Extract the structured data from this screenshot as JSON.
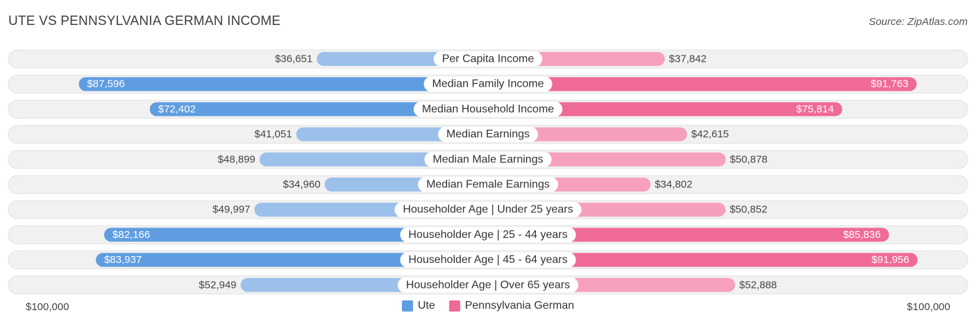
{
  "title": "UTE VS PENNSYLVANIA GERMAN INCOME",
  "source": "Source: ZipAtlas.com",
  "colors": {
    "left_light": "#9bc0e9",
    "left_dark": "#5f9de0",
    "right_light": "#f6a0bd",
    "right_dark": "#f06a97",
    "track": "#f1f1f1"
  },
  "axis": {
    "left_label": "$100,000",
    "right_label": "$100,000"
  },
  "legend": {
    "left": "Ute",
    "right": "Pennsylvania German"
  },
  "chart_data": {
    "type": "bar",
    "orientation": "horizontal-diverging",
    "max": 100000,
    "categories": [
      "Per Capita Income",
      "Median Family Income",
      "Median Household Income",
      "Median Earnings",
      "Median Male Earnings",
      "Median Female Earnings",
      "Householder Age | Under 25 years",
      "Householder Age | 25 - 44 years",
      "Householder Age | 45 - 64 years",
      "Householder Age | Over 65 years"
    ],
    "series": [
      {
        "name": "Ute",
        "values": [
          36651,
          87596,
          72402,
          41051,
          48899,
          34960,
          49997,
          82166,
          83937,
          52949
        ],
        "labels": [
          "$36,651",
          "$87,596",
          "$72,402",
          "$41,051",
          "$48,899",
          "$34,960",
          "$49,997",
          "$82,166",
          "$83,937",
          "$52,949"
        ]
      },
      {
        "name": "Pennsylvania German",
        "values": [
          37842,
          91763,
          75814,
          42615,
          50878,
          34802,
          50852,
          85836,
          91956,
          52888
        ],
        "labels": [
          "$37,842",
          "$91,763",
          "$75,814",
          "$42,615",
          "$50,878",
          "$34,802",
          "$50,852",
          "$85,836",
          "$91,956",
          "$52,888"
        ]
      }
    ]
  }
}
